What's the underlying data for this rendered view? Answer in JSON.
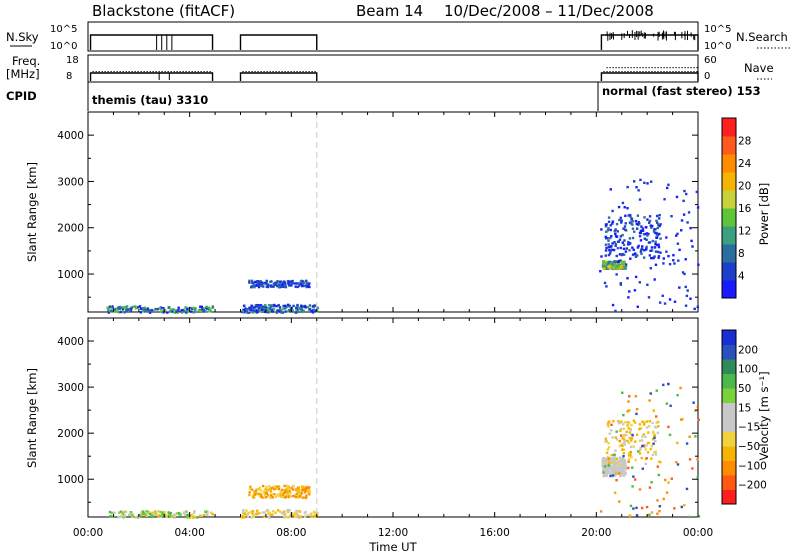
{
  "header": {
    "title": "Blackstone (fitACF)",
    "beam": "Beam 14",
    "date_range": "10/Dec/2008 – 11/Dec/2008"
  },
  "summary": {
    "nsky_label": "N.Sky",
    "nsky_ticks": [
      "10^5",
      "10^0"
    ],
    "nsearch_label": "N.Search",
    "nsearch_ticks": [
      "10^5",
      "10^0"
    ],
    "freq_label_1": "Freq.",
    "freq_label_2": "[MHz]",
    "freq_ticks": [
      "18",
      "8"
    ],
    "nave_label": "Nave",
    "nave_ticks": [
      "60",
      "0"
    ],
    "cpid_label": "CPID",
    "cpid_1": "themis (tau) 3310",
    "cpid_2": "normal (fast stereo) 153"
  },
  "x_axis": {
    "label": "Time UT",
    "ticks": [
      "00:00",
      "04:00",
      "08:00",
      "12:00",
      "16:00",
      "20:00",
      "00:00"
    ],
    "dashed_line_hour": 9
  },
  "y_axis": {
    "label": "Slant Range [km]",
    "ticks": [
      "1000",
      "2000",
      "3000",
      "4000"
    ],
    "range_km": [
      180,
      4500
    ]
  },
  "power_bar": {
    "label": "Power [dB]",
    "ticks": [
      "4",
      "8",
      "12",
      "16",
      "20",
      "24",
      "28"
    ],
    "colors": [
      "#1a1aff",
      "#1c3ec8",
      "#2a6ea0",
      "#3aa080",
      "#5ec53a",
      "#c8d23a",
      "#f5b400",
      "#ff8c00",
      "#ff5a1e",
      "#ff2020"
    ]
  },
  "velocity_bar": {
    "label": "Velocity [m s⁻¹]",
    "ticks": [
      "200",
      "100",
      "50",
      "15",
      "−15",
      "−50",
      "−100",
      "−200"
    ],
    "colors": [
      "#1a2ed6",
      "#2a4fbe",
      "#2f8a5a",
      "#4cb84a",
      "#7ad23a",
      "#c8c8c8",
      "#c8c8c8",
      "#f0d23c",
      "#f5b400",
      "#ff8c00",
      "#ff5a14",
      "#ff1e1e"
    ]
  },
  "chart_data": [
    {
      "type": "heatmap",
      "name": "power",
      "xlabel": "Time UT",
      "ylabel": "Slant Range [km]",
      "xlim_hours": [
        0,
        24
      ],
      "ylim_km": [
        180,
        4500
      ],
      "colorbar_label": "Power [dB]",
      "clim_db": [
        0,
        30
      ],
      "regions": [
        {
          "t": [
            0.7,
            4.9
          ],
          "r": [
            180,
            350
          ],
          "level": "4–10 dB"
        },
        {
          "t": [
            6.0,
            9.0
          ],
          "r": [
            180,
            350
          ],
          "level": "4–10 dB"
        },
        {
          "t": [
            6.3,
            8.7
          ],
          "r": [
            740,
            880
          ],
          "level": "4–10 dB"
        },
        {
          "t": [
            20.2,
            21.2
          ],
          "r": [
            1150,
            1300
          ],
          "level": "12–22 dB"
        },
        {
          "t": [
            20.2,
            22.5
          ],
          "r": [
            1350,
            2300
          ],
          "level": "4–10 dB"
        },
        {
          "t": [
            20.2,
            24.0
          ],
          "r": [
            200,
            3100
          ],
          "level": "scattered 4–8 dB"
        }
      ]
    },
    {
      "type": "heatmap",
      "name": "velocity",
      "xlabel": "Time UT",
      "ylabel": "Slant Range [km]",
      "xlim_hours": [
        0,
        24
      ],
      "ylim_km": [
        180,
        4500
      ],
      "colorbar_label": "Velocity [m s⁻¹]",
      "clim_ms": [
        -250,
        250
      ],
      "regions": [
        {
          "t": [
            0.7,
            4.9
          ],
          "r": [
            180,
            350
          ],
          "level": "-50 to 15 m/s"
        },
        {
          "t": [
            6.3,
            8.7
          ],
          "r": [
            620,
            880
          ],
          "level": "-50 to -15 m/s"
        },
        {
          "t": [
            20.2,
            21.2
          ],
          "r": [
            1100,
            1500
          ],
          "level": "ground scatter (-15 to 15 m/s)"
        },
        {
          "t": [
            20.2,
            24.0
          ],
          "r": [
            200,
            3100
          ],
          "level": "scattered -100 to 100 m/s"
        }
      ]
    }
  ]
}
